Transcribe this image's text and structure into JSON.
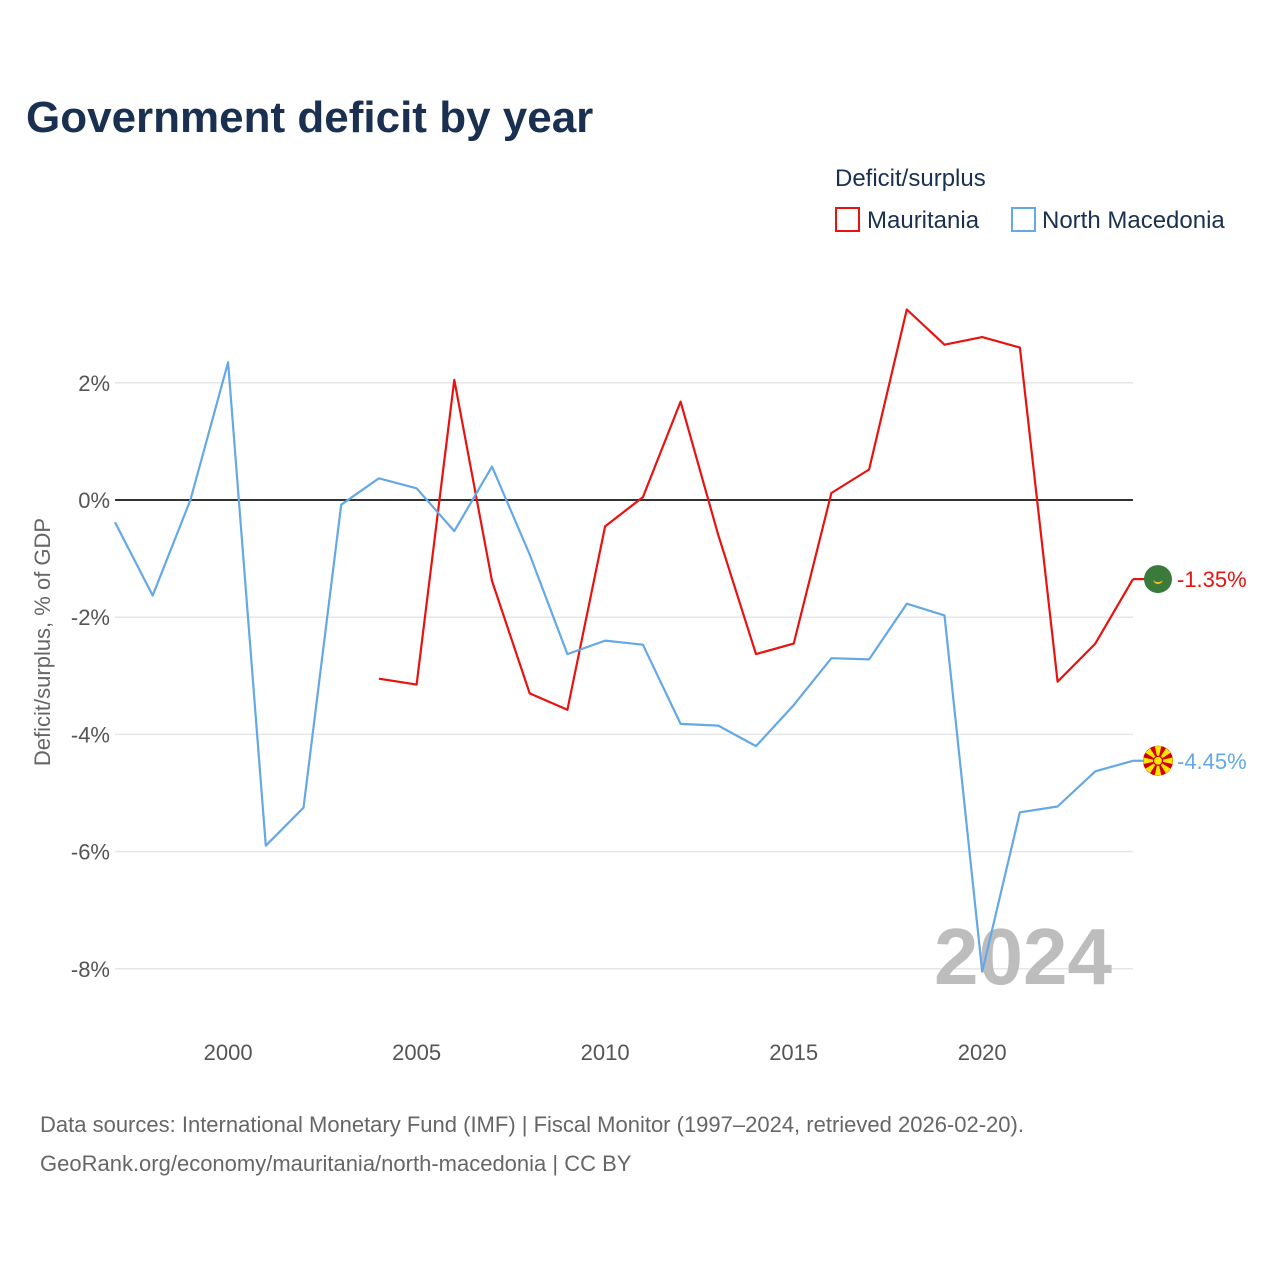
{
  "chart_data": {
    "type": "line",
    "title": "Government deficit by year",
    "ylabel": "Deficit/surplus, % of GDP",
    "xlabel": "",
    "xlim": [
      1997,
      2024
    ],
    "ylim": [
      -9,
      4
    ],
    "x_ticks": [
      2000,
      2005,
      2010,
      2015,
      2020
    ],
    "y_ticks": [
      2,
      0,
      -2,
      -4,
      -6,
      -8
    ],
    "y_tick_labels": [
      "2%",
      "0%",
      "-2%",
      "-4%",
      "-6%",
      "-8%"
    ],
    "legend_title": "Deficit/surplus",
    "legend_position": "top-right",
    "watermark_year": "2024",
    "series": [
      {
        "name": "Mauritania",
        "color": "#e8130f",
        "end_label": "-1.35%",
        "flag": "mauritania-flag-icon",
        "points": [
          [
            2004,
            -3.05
          ],
          [
            2005,
            -3.15
          ],
          [
            2006,
            2.05
          ],
          [
            2007,
            -1.38
          ],
          [
            2008,
            -3.3
          ],
          [
            2009,
            -3.58
          ],
          [
            2010,
            -0.45
          ],
          [
            2011,
            0.05
          ],
          [
            2012,
            1.68
          ],
          [
            2013,
            -0.6
          ],
          [
            2014,
            -2.63
          ],
          [
            2015,
            -2.45
          ],
          [
            2016,
            0.12
          ],
          [
            2017,
            0.52
          ],
          [
            2018,
            3.25
          ],
          [
            2019,
            2.65
          ],
          [
            2020,
            2.78
          ],
          [
            2021,
            2.6
          ],
          [
            2022,
            -3.1
          ],
          [
            2023,
            -2.45
          ],
          [
            2024,
            -1.35
          ]
        ]
      },
      {
        "name": "North Macedonia",
        "color": "#64a8e6",
        "end_label": "-4.45%",
        "flag": "north-macedonia-flag-icon",
        "points": [
          [
            1997,
            -0.38
          ],
          [
            1998,
            -1.63
          ],
          [
            1999,
            0.0
          ],
          [
            2000,
            2.35
          ],
          [
            2001,
            -5.9
          ],
          [
            2002,
            -5.25
          ],
          [
            2003,
            -0.08
          ],
          [
            2004,
            0.37
          ],
          [
            2005,
            0.2
          ],
          [
            2006,
            -0.53
          ],
          [
            2007,
            0.57
          ],
          [
            2008,
            -0.93
          ],
          [
            2009,
            -2.63
          ],
          [
            2010,
            -2.4
          ],
          [
            2011,
            -2.47
          ],
          [
            2012,
            -3.82
          ],
          [
            2013,
            -3.85
          ],
          [
            2014,
            -4.2
          ],
          [
            2015,
            -3.5
          ],
          [
            2016,
            -2.7
          ],
          [
            2017,
            -2.72
          ],
          [
            2018,
            -1.77
          ],
          [
            2019,
            -1.97
          ],
          [
            2020,
            -8.05
          ],
          [
            2021,
            -5.33
          ],
          [
            2022,
            -5.23
          ],
          [
            2023,
            -4.63
          ],
          [
            2024,
            -4.45
          ]
        ]
      }
    ]
  },
  "footer": {
    "source_line1": "Data sources: International Monetary Fund (IMF) | Fiscal Monitor (1997–2024, retrieved 2026-02-20).",
    "source_line2": "GeoRank.org/economy/mauritania/north-macedonia | CC BY"
  },
  "colors": {
    "title": "#1a3050",
    "zero_line": "#333333",
    "grid": "#e6e6e6",
    "watermark": "#bdbdbd"
  }
}
